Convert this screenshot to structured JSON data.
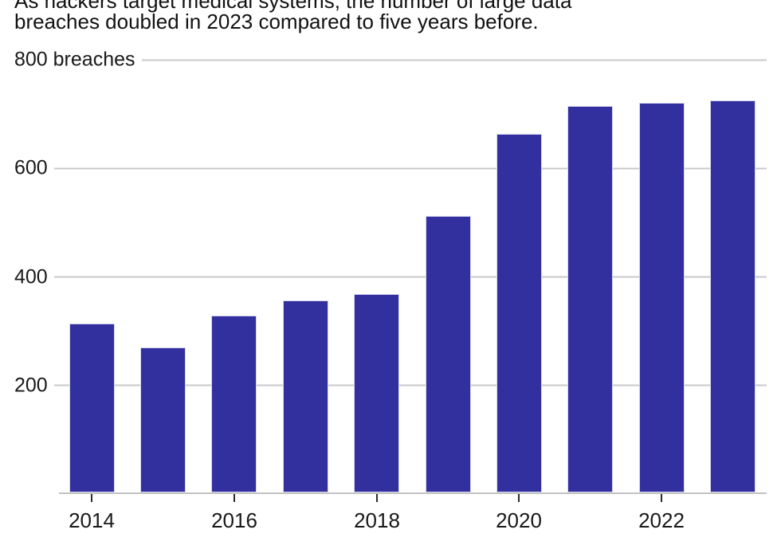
{
  "chart_data": {
    "type": "bar",
    "title": "As hackers target medical systems, the number of large data breaches doubled in 2023 compared to five years before.",
    "title_lines": [
      "As hackers target medical systems, the number of large data",
      "breaches doubled in 2023 compared to five years before."
    ],
    "categories": [
      "2014",
      "2015",
      "2016",
      "2017",
      "2018",
      "2019",
      "2020",
      "2021",
      "2022",
      "2023"
    ],
    "values": [
      314,
      270,
      329,
      357,
      369,
      512,
      663,
      715,
      720,
      725
    ],
    "ylabel": "breaches",
    "y_gridlines": [
      {
        "value": 800,
        "label": "800 breaches"
      },
      {
        "value": 600,
        "label": "600"
      },
      {
        "value": 400,
        "label": "400"
      },
      {
        "value": 200,
        "label": "200"
      }
    ],
    "x_axis_labels": [
      {
        "label": "2014",
        "category_index": 0
      },
      {
        "label": "2016",
        "category_index": 2
      },
      {
        "label": "2018",
        "category_index": 4
      },
      {
        "label": "2020",
        "category_index": 6
      },
      {
        "label": "2022",
        "category_index": 8
      }
    ],
    "ylim": [
      0,
      800
    ],
    "grid": true,
    "legend": "none",
    "colors": {
      "bar": "#32309E",
      "bar_edge": "#D8D7EF",
      "gridline": "#C9C9C9",
      "axis_line": "#C2C2C2",
      "tick": "#2B2B2B",
      "title_text": "#111111",
      "axis_text": "#191919",
      "background": "#FFFFFF"
    }
  }
}
